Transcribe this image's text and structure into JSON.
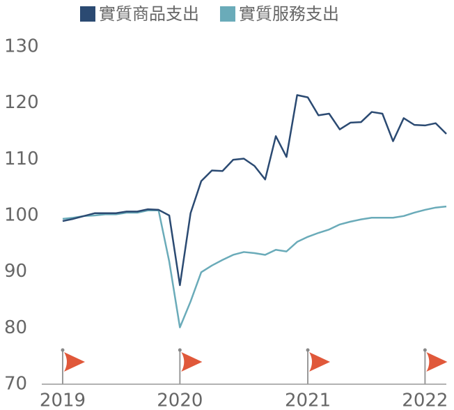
{
  "chart_data": {
    "type": "line",
    "categories": [
      "2019",
      null,
      null,
      null,
      null,
      null,
      null,
      null,
      null,
      null,
      null,
      "2020",
      null,
      null,
      null,
      null,
      null,
      null,
      null,
      null,
      null,
      null,
      null,
      "2021",
      null,
      null,
      null,
      null,
      null,
      null,
      null,
      null,
      null,
      null,
      "2022",
      null,
      null
    ],
    "series": [
      {
        "name": "實質商品支出",
        "color": "#2b4a72",
        "values": [
          99.0,
          99.4,
          99.9,
          100.4,
          100.4,
          100.4,
          100.7,
          100.7,
          101.1,
          101.0,
          100.0,
          87.6,
          100.4,
          106.1,
          108.0,
          107.9,
          109.9,
          110.1,
          108.8,
          106.4,
          114.1,
          110.4,
          121.4,
          121.0,
          117.8,
          118.1,
          115.3,
          116.5,
          116.6,
          118.4,
          118.1,
          113.2,
          117.3,
          116.1,
          116.0,
          116.4,
          114.5
        ]
      },
      {
        "name": "實質服務支出",
        "color": "#6aabb9",
        "values": [
          99.4,
          99.6,
          99.9,
          100.0,
          100.2,
          100.2,
          100.5,
          100.5,
          100.9,
          100.9,
          91.8,
          80.1,
          84.7,
          89.9,
          91.1,
          92.1,
          93.0,
          93.5,
          93.3,
          93.0,
          93.9,
          93.6,
          95.3,
          96.2,
          96.9,
          97.5,
          98.4,
          98.9,
          99.3,
          99.6,
          99.6,
          99.6,
          99.9,
          100.5,
          101.0,
          101.4,
          101.6
        ]
      }
    ],
    "ylim": [
      70,
      130
    ],
    "yticks": [
      70,
      80,
      90,
      100,
      110,
      120,
      130
    ]
  }
}
